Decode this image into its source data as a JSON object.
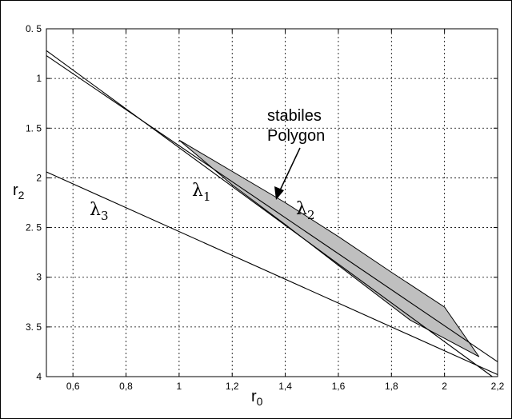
{
  "chart_data": {
    "type": "line",
    "xlabel": "r",
    "xlabel_sub": "0",
    "ylabel": "r",
    "ylabel_sub": "2",
    "xlim": [
      0.5,
      2.2
    ],
    "ylim": [
      0.5,
      4
    ],
    "y_inverted": true,
    "grid": "dashed",
    "x_ticks": [
      0.6,
      0.8,
      1,
      1.2,
      1.4,
      1.6,
      1.8,
      2,
      2.2
    ],
    "x_tick_labels": [
      "0,6",
      "0,8",
      "1",
      "1,2",
      "1,4",
      "1,6",
      "1,8",
      "2",
      "2,2"
    ],
    "y_ticks": [
      0.5,
      1,
      1.5,
      2,
      2.5,
      3,
      3.5,
      4
    ],
    "y_tick_labels": [
      "0. 5",
      "1",
      "1. 5",
      "2",
      "2. 5",
      "3",
      "3. 5",
      "4"
    ],
    "series": [
      {
        "name": "λ1",
        "symbol": "λ",
        "subscript": "1",
        "x": [
          0.5,
          2.18
        ],
        "y": [
          0.72,
          4.0
        ]
      },
      {
        "name": "λ2",
        "symbol": "λ",
        "subscript": "2",
        "x": [
          0.5,
          2.2
        ],
        "y": [
          0.77,
          3.85
        ]
      },
      {
        "name": "λ3",
        "symbol": "λ",
        "subscript": "3",
        "x": [
          0.5,
          2.2
        ],
        "y": [
          1.94,
          3.98
        ]
      }
    ],
    "polygon": {
      "x": [
        1.0,
        1.4,
        1.6,
        1.8,
        2.0,
        2.13,
        1.87,
        1.6,
        1.4,
        1.2
      ],
      "y": [
        1.62,
        2.25,
        2.59,
        2.95,
        3.3,
        3.8,
        3.43,
        2.88,
        2.47,
        2.07
      ],
      "fill": "#bfbfbf"
    },
    "annotations": {
      "polygon_label": [
        "stabiles",
        "Polygon"
      ]
    }
  }
}
